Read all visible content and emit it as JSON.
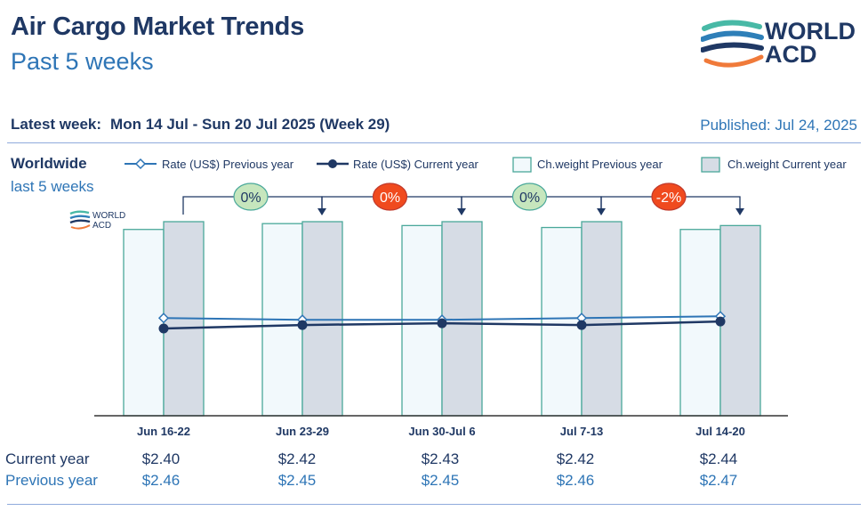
{
  "header": {
    "title": "Air Cargo Market Trends",
    "subtitle": "Past 5 weeks",
    "logo_text_line1": "WORLD",
    "logo_text_line2": "ACD"
  },
  "info": {
    "latest_label": "Latest week:",
    "latest_value": "Mon 14 Jul - Sun 20 Jul 2025 (Week 29)",
    "published": "Published: Jul 24, 2025",
    "region": "Worldwide",
    "period": "last 5 weeks"
  },
  "legend": {
    "rate_prev": "Rate (US$) Previous year",
    "rate_cur": "Rate (US$) Current year",
    "weight_prev": "Ch.weight Previous year",
    "weight_cur": "Ch.weight Current year"
  },
  "rows": {
    "current_label": "Current year",
    "previous_label": "Previous year"
  },
  "colors": {
    "navy": "#1f3864",
    "blue": "#2e75b6",
    "teal": "#4aa89a",
    "bar_prev_fill": "#f2f9fc",
    "bar_cur_fill": "#d6dce5",
    "badge_green": "#c6e6bd",
    "badge_red": "#f04a1e"
  },
  "chart_data": {
    "type": "bar",
    "categories": [
      "Jun 16-22",
      "Jun 23-29",
      "Jun 30-Jul 6",
      "Jul 7-13",
      "Jul 14-20"
    ],
    "series": [
      {
        "name": "Ch.weight Previous year",
        "kind": "bar",
        "values": [
          0.96,
          0.99,
          0.98,
          0.97,
          0.96
        ]
      },
      {
        "name": "Ch.weight Current year",
        "kind": "bar",
        "values": [
          1.0,
          1.0,
          1.0,
          1.0,
          0.98
        ]
      },
      {
        "name": "Rate (US$) Previous year",
        "kind": "line",
        "values": [
          2.46,
          2.45,
          2.45,
          2.46,
          2.47
        ]
      },
      {
        "name": "Rate (US$) Current year",
        "kind": "line",
        "values": [
          2.4,
          2.42,
          2.43,
          2.42,
          2.44
        ]
      }
    ],
    "rate_labels_current": [
      "$2.40",
      "$2.42",
      "$2.43",
      "$2.42",
      "$2.44"
    ],
    "rate_labels_previous": [
      "$2.46",
      "$2.45",
      "$2.45",
      "$2.46",
      "$2.47"
    ],
    "week_changes": [
      {
        "label": "0%",
        "color": "green"
      },
      {
        "label": "0%",
        "color": "red"
      },
      {
        "label": "0%",
        "color": "green"
      },
      {
        "label": "-2%",
        "color": "red"
      }
    ],
    "legend_position": "top",
    "grid": false
  }
}
